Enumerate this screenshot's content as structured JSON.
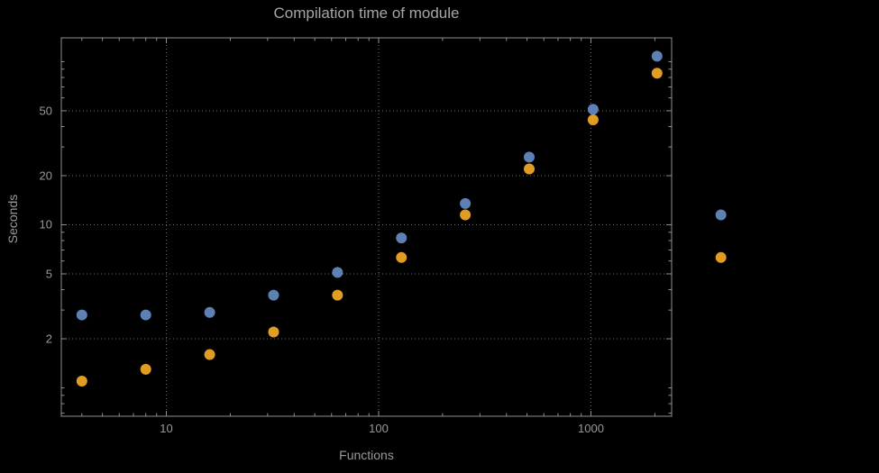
{
  "page": {
    "background": "#000000"
  },
  "chart_data": {
    "type": "scatter",
    "title": "Compilation time of module",
    "xlabel": "Functions",
    "ylabel": "Seconds",
    "xscale": "log",
    "yscale": "log",
    "xlim": [
      3.2,
      2400
    ],
    "ylim": [
      0.67,
      140
    ],
    "x_ticks": [
      10,
      100,
      1000
    ],
    "y_ticks": [
      2,
      5,
      10,
      20,
      50
    ],
    "grid": true,
    "legend": "none",
    "colors": {
      "series1": "#5e81b5",
      "series2": "#e19c24",
      "grid": "#6b6b6b",
      "frame": "#919191",
      "text": "#9a9a9a"
    },
    "series": [
      {
        "name": "series-1-blue",
        "color": "#5e81b5",
        "points": [
          [
            4,
            2.8
          ],
          [
            8,
            2.8
          ],
          [
            16,
            2.9
          ],
          [
            32,
            3.7
          ],
          [
            64,
            5.1
          ],
          [
            128,
            8.3
          ],
          [
            256,
            13.5
          ],
          [
            512,
            26
          ],
          [
            1024,
            51
          ],
          [
            2048,
            108
          ],
          [
            4096,
            11.5
          ]
        ]
      },
      {
        "name": "series-2-orange",
        "color": "#e19c24",
        "points": [
          [
            4,
            1.1
          ],
          [
            8,
            1.3
          ],
          [
            16,
            1.6
          ],
          [
            32,
            2.2
          ],
          [
            64,
            3.7
          ],
          [
            128,
            6.3
          ],
          [
            256,
            11.5
          ],
          [
            512,
            22
          ],
          [
            1024,
            44
          ],
          [
            2048,
            85
          ],
          [
            4096,
            6.3
          ]
        ]
      }
    ]
  }
}
